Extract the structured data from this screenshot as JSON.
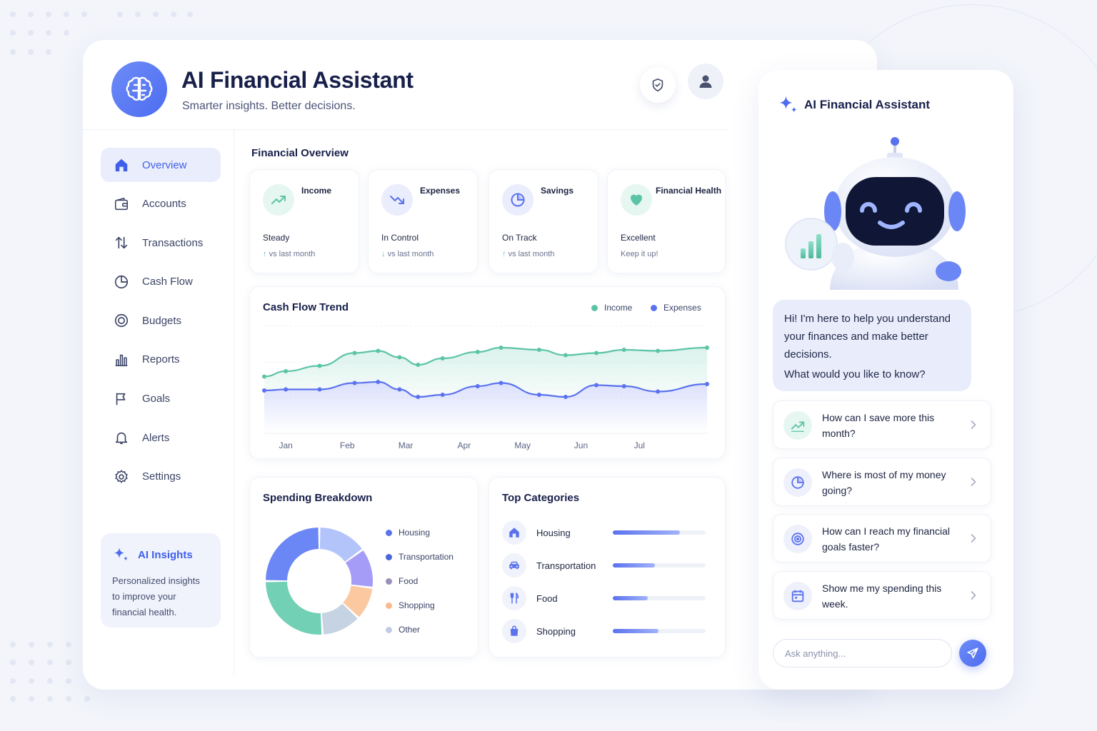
{
  "header": {
    "title": "AI Financial Assistant",
    "subtitle": "Smarter insights. Better decisions.",
    "shield_icon": "shield-check-icon",
    "profile_icon": "user-icon"
  },
  "sidebar": {
    "items": [
      {
        "label": "Overview",
        "icon": "home-icon",
        "active": true
      },
      {
        "label": "Accounts",
        "icon": "wallet-icon"
      },
      {
        "label": "Transactions",
        "icon": "arrows-updown-icon"
      },
      {
        "label": "Cash Flow",
        "icon": "pie-icon"
      },
      {
        "label": "Budgets",
        "icon": "target-icon"
      },
      {
        "label": "Reports",
        "icon": "bar-chart-icon"
      },
      {
        "label": "Goals",
        "icon": "flag-icon"
      },
      {
        "label": "Alerts",
        "icon": "bell-icon"
      },
      {
        "label": "Settings",
        "icon": "gear-icon"
      }
    ],
    "insights": {
      "title": "AI Insights",
      "text": "Personalized insights to improve your financial health."
    }
  },
  "overview": {
    "title": "Financial Overview",
    "cards": [
      {
        "label": "Income",
        "value": "Steady",
        "sub": "vs last month",
        "icon": "trend-up-icon",
        "color": "#5cc4a6"
      },
      {
        "label": "Expenses",
        "value": "In Control",
        "sub": "vs last month",
        "icon": "trend-down-icon",
        "color": "#5b72ee"
      },
      {
        "label": "Savings",
        "value": "On Track",
        "sub": "vs last month",
        "icon": "pie-icon",
        "color": "#5b72ee"
      },
      {
        "label": "Financial Health",
        "value": "Excellent",
        "sub": "Keep it up!",
        "icon": "heart-icon",
        "color": "#5cc4a6"
      }
    ]
  },
  "cashflow": {
    "title": "Cash Flow Trend",
    "legend": [
      "Income",
      "Expenses"
    ]
  },
  "chart_data": {
    "type": "line",
    "title": "Cash Flow Trend",
    "categories": [
      "Jan",
      "Feb",
      "Mar",
      "Apr",
      "May",
      "Jun",
      "Jul"
    ],
    "x": [
      0,
      0.35,
      0.9,
      1.47,
      1.85,
      2.2,
      2.5,
      2.9,
      3.47,
      3.85,
      4.47,
      4.9,
      5.4,
      5.85,
      6.4,
      7.2
    ],
    "series": [
      {
        "name": "Income",
        "color": "#5cc4a6",
        "values": [
          53,
          58,
          63,
          75,
          77,
          71,
          64,
          70,
          76,
          80,
          78,
          73,
          75,
          78,
          77,
          80
        ]
      },
      {
        "name": "Expenses",
        "color": "#5b72ee",
        "values": [
          40,
          41,
          41,
          47,
          48,
          41,
          34,
          36,
          44,
          47,
          36,
          34,
          45,
          44,
          39,
          46
        ]
      }
    ],
    "ylim": [
      0,
      100
    ],
    "grid": true,
    "legend_position": "top-right"
  },
  "spending": {
    "title": "Spending Breakdown",
    "segments": [
      {
        "label": "Housing",
        "color": "#5b72ee",
        "value": 25,
        "ring_color": "#6b86f5"
      },
      {
        "label": "Transportation",
        "color": "#4a66d8",
        "value": 15,
        "ring_color": "#b3c4fb"
      },
      {
        "label": "Food",
        "color": "#9a8fb8",
        "value": 12,
        "ring_color": "#a59cf7"
      },
      {
        "label": "Shopping",
        "color": "#f9b98a",
        "value": 10,
        "ring_color": "#fcc8a0"
      },
      {
        "label": "Other",
        "color": "#c3cce6",
        "value": 12,
        "ring_color": "#c5d3e2"
      },
      {
        "label": "",
        "color": "#72d0b4",
        "value": 26,
        "ring_color": "#72d0b4"
      }
    ]
  },
  "categories": {
    "title": "Top Categories",
    "items": [
      {
        "label": "Housing",
        "icon": "home-icon",
        "fill": 0.72
      },
      {
        "label": "Transportation",
        "icon": "car-icon",
        "fill": 0.45
      },
      {
        "label": "Food",
        "icon": "fork-knife-icon",
        "fill": 0.38
      },
      {
        "label": "Shopping",
        "icon": "shopping-bag-icon",
        "fill": 0.49
      }
    ]
  },
  "chat": {
    "title": "AI Financial Assistant",
    "greeting_line1": "Hi! I'm here to help you understand your finances and make better decisions.",
    "greeting_line2": "What would you like to know?",
    "suggestions": [
      {
        "text": "How can I save more this month?",
        "icon": "trend-up-icon"
      },
      {
        "text": "Where is most of my money going?",
        "icon": "pie-icon"
      },
      {
        "text": "How can I reach my financial goals faster?",
        "icon": "target-icon"
      },
      {
        "text": "Show me my spending this week.",
        "icon": "calendar-icon"
      }
    ],
    "input_placeholder": "Ask anything...",
    "send_icon": "send-icon"
  },
  "colors": {
    "accent": "#4d6cf0",
    "income": "#5cc4a6",
    "expenses": "#5b72ee"
  }
}
